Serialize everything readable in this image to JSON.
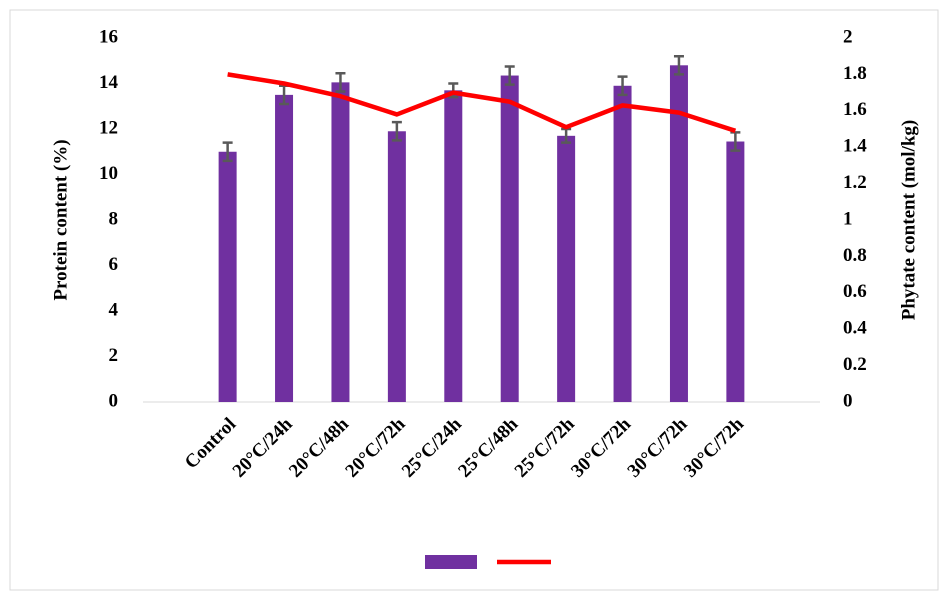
{
  "chart_data": {
    "type": "bar-line",
    "categories": [
      null,
      "Control",
      "20°C/24h",
      "20°C/48h",
      "20°C/72h",
      "25°C/24h",
      "25°C/48h",
      "25°C/72h",
      "30°C/72h",
      "30°C/72h",
      "30°C/72h",
      null
    ],
    "series": [
      {
        "type": "bar",
        "color": "#7030a0",
        "values": [
          null,
          11.0,
          13.5,
          14.05,
          11.9,
          13.7,
          14.35,
          11.7,
          13.9,
          14.8,
          11.45,
          null
        ],
        "errors": [
          null,
          0.4,
          0.4,
          0.4,
          0.4,
          0.3,
          0.4,
          0.3,
          0.4,
          0.4,
          0.4,
          null
        ]
      },
      {
        "type": "line",
        "axis": "y2",
        "color": "#ff0000",
        "values": [
          null,
          1.8,
          1.75,
          1.68,
          1.58,
          1.7,
          1.65,
          1.51,
          1.63,
          1.59,
          1.49,
          null
        ]
      }
    ],
    "y_label": "Protein content (%)",
    "y2_label": "Phytate content (mol/kg)",
    "ylim": [
      0,
      16
    ],
    "yticks": [
      0,
      2,
      4,
      6,
      8,
      10,
      12,
      14,
      16
    ],
    "y2lim": [
      0,
      2
    ],
    "y2ticks": [
      0,
      0.2,
      0.4,
      0.6,
      0.8,
      1,
      1.2,
      1.4,
      1.6,
      1.8,
      2
    ],
    "legend": "bottom"
  }
}
